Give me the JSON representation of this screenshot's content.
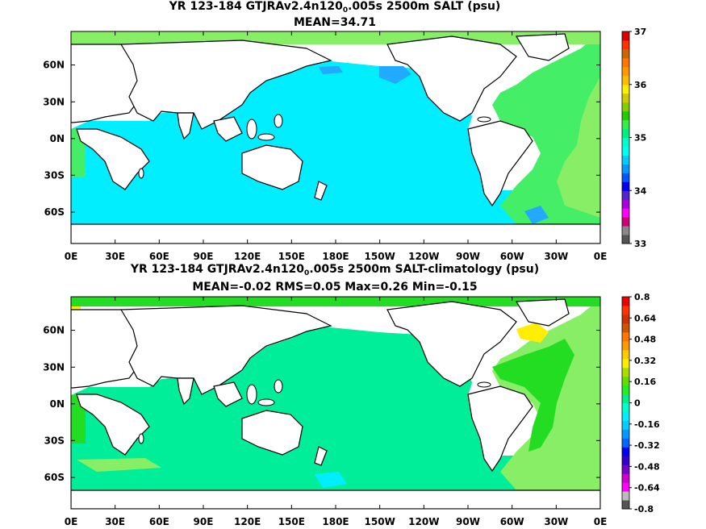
{
  "panels": [
    {
      "title_pre": "YR 123-184 GTJRAv2.4n120",
      "title_sub": "0",
      "title_post": ".005s 2500m SALT (psu)",
      "stats": "MEAN=34.71",
      "colorbar_labels": [
        "37",
        "36",
        "35",
        "34",
        "33"
      ]
    },
    {
      "title_pre": "YR 123-184 GTJRAv2.4n120",
      "title_sub": "0",
      "title_post": ".005s 2500m SALT-climatology (psu)",
      "stats": "MEAN=-0.02   RMS=0.05   Max=0.26   Min=-0.15",
      "colorbar_labels": [
        "0.8",
        "0.64",
        "0.48",
        "0.32",
        "0.16",
        "0",
        "-0.16",
        "-0.32",
        "-0.48",
        "-0.64",
        "-0.8"
      ]
    }
  ],
  "lat_labels": [
    "60N",
    "30N",
    "0N",
    "30S",
    "60S"
  ],
  "lon_labels": [
    "0E",
    "30E",
    "60E",
    "90E",
    "120E",
    "150E",
    "180E",
    "150W",
    "120W",
    "90W",
    "60W",
    "30W",
    "0E"
  ],
  "colors": {
    "ocean_cyan": "#00eeff",
    "ocean_mint": "#00ee99",
    "atlantic_green": "#44ee66",
    "light_green": "#88ee66",
    "bright_green": "#22dd22",
    "yellow": "#ffee00",
    "blue": "#22aaff",
    "land": "#ffffff"
  },
  "colorbar_top": [
    "#555555",
    "#888888",
    "#cc0077",
    "#ff00ff",
    "#aa00dd",
    "#5522cc",
    "#0000ee",
    "#0055ff",
    "#0099ff",
    "#00ccff",
    "#00ffee",
    "#00ffcc",
    "#00ee88",
    "#33ee44",
    "#22cc00",
    "#88cc00",
    "#cccc00",
    "#ffee00",
    "#ffbb00",
    "#ff9900",
    "#ff7700",
    "#cc6600",
    "#ff3300",
    "#dd0000"
  ],
  "colorbar_bottom": [
    "#555555",
    "#bbbbbb",
    "#ff00ff",
    "#cc00cc",
    "#7700cc",
    "#3300cc",
    "#0000ee",
    "#0066ff",
    "#0099ff",
    "#00ccff",
    "#00eeff",
    "#00ffcc",
    "#00ee88",
    "#22ee22",
    "#66dd00",
    "#aadd00",
    "#ffee00",
    "#ffcc00",
    "#ff9900",
    "#ff7700",
    "#cc5500",
    "#cc3300",
    "#ff3300",
    "#ee0000"
  ]
}
